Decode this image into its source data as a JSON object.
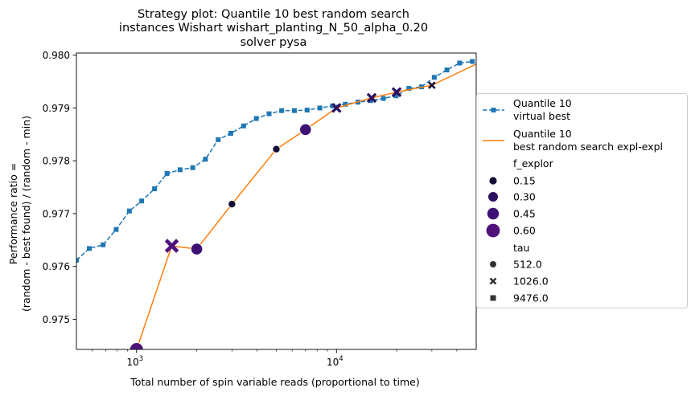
{
  "chart_data": {
    "type": "line",
    "title": [
      "Strategy plot: Quantile 10 best random search",
      "instances Wishart wishart_planting_N_50_alpha_0.20",
      "solver pysa"
    ],
    "xlabel": "Total number of spin variable reads (proportional to time)",
    "ylabel": [
      "Performance ratio =",
      "(random - best found) / (random - min)"
    ],
    "xscale": "log",
    "xlim": [
      500,
      50000
    ],
    "ylim": [
      0.97443,
      0.98004
    ],
    "x_major_ticks": [
      {
        "value": 1000,
        "base": "10",
        "exp": "3"
      },
      {
        "value": 10000,
        "base": "10",
        "exp": "4"
      }
    ],
    "x_minor_ticks": [
      600,
      700,
      800,
      900,
      2000,
      3000,
      4000,
      5000,
      6000,
      7000,
      8000,
      9000,
      20000,
      30000,
      40000
    ],
    "y_ticks": [
      {
        "value": 0.975,
        "label": "0.975"
      },
      {
        "value": 0.976,
        "label": "0.976"
      },
      {
        "value": 0.977,
        "label": "0.977"
      },
      {
        "value": 0.978,
        "label": "0.978"
      },
      {
        "value": 0.979,
        "label": "0.979"
      },
      {
        "value": 0.98,
        "label": "0.980"
      }
    ],
    "series": [
      {
        "name": "Quantile 10\n virtual best",
        "color": "#1f77b4",
        "line_style": "dashed",
        "marker": "square",
        "x": [
          500,
          580,
          680,
          790,
          920,
          1060,
          1230,
          1420,
          1650,
          1910,
          2210,
          2560,
          2960,
          3430,
          3970,
          4600,
          5320,
          6160,
          7130,
          8260,
          9560,
          11070,
          12810,
          14830,
          17170,
          19880,
          23010,
          26640,
          30840,
          35700,
          41330,
          47840
        ],
        "y": [
          0.97612,
          0.97634,
          0.97641,
          0.9767,
          0.97705,
          0.97724,
          0.97747,
          0.97776,
          0.97783,
          0.97787,
          0.97803,
          0.9784,
          0.97852,
          0.97866,
          0.9788,
          0.97889,
          0.97895,
          0.97895,
          0.97896,
          0.979,
          0.97904,
          0.97907,
          0.97911,
          0.97914,
          0.97918,
          0.97923,
          0.97937,
          0.9794,
          0.97958,
          0.97972,
          0.97985,
          0.97988
        ]
      },
      {
        "name": "Quantile 10\n best random search expl-expl",
        "color": "#ff7f0e",
        "line_style": "solid",
        "x": [
          1000,
          1500,
          2000,
          3000,
          5000,
          7000,
          10000,
          15000,
          20000,
          30000,
          50000
        ],
        "y": [
          0.97443,
          0.97639,
          0.97633,
          0.97718,
          0.97822,
          0.97859,
          0.979,
          0.97919,
          0.9793,
          0.97943,
          0.97983
        ]
      }
    ],
    "scatter_points": [
      {
        "x": 1000,
        "y": 0.97443,
        "f_explor": "0.60",
        "tau": "512.0"
      },
      {
        "x": 1500,
        "y": 0.97639,
        "f_explor": "0.60",
        "tau": "1026.0"
      },
      {
        "x": 2000,
        "y": 0.97633,
        "f_explor": "0.45",
        "tau": "512.0"
      },
      {
        "x": 3000,
        "y": 0.97718,
        "f_explor": "0.15",
        "tau": "512.0"
      },
      {
        "x": 5000,
        "y": 0.97822,
        "f_explor": "0.15",
        "tau": "512.0"
      },
      {
        "x": 7000,
        "y": 0.97859,
        "f_explor": "0.45",
        "tau": "512.0"
      },
      {
        "x": 10000,
        "y": 0.979,
        "f_explor": "0.30",
        "tau": "1026.0"
      },
      {
        "x": 15000,
        "y": 0.97919,
        "f_explor": "0.30",
        "tau": "1026.0"
      },
      {
        "x": 20000,
        "y": 0.9793,
        "f_explor": "0.30",
        "tau": "1026.0"
      },
      {
        "x": 30000,
        "y": 0.97943,
        "f_explor": "0.15",
        "tau": "1026.0"
      }
    ],
    "legend": {
      "placement": "right",
      "hue_title": "f_explor",
      "hue_entries": [
        {
          "label": "0.15",
          "color": "#140e36"
        },
        {
          "label": "0.30",
          "color": "#2d1160"
        },
        {
          "label": "0.45",
          "color": "#3d1174"
        },
        {
          "label": "0.60",
          "color": "#4f127b"
        }
      ],
      "style_title": "tau",
      "style_entries": [
        {
          "label": "512.0",
          "marker": "circle"
        },
        {
          "label": "1026.0",
          "marker": "x"
        },
        {
          "label": "9476.0",
          "marker": "square"
        }
      ]
    }
  }
}
